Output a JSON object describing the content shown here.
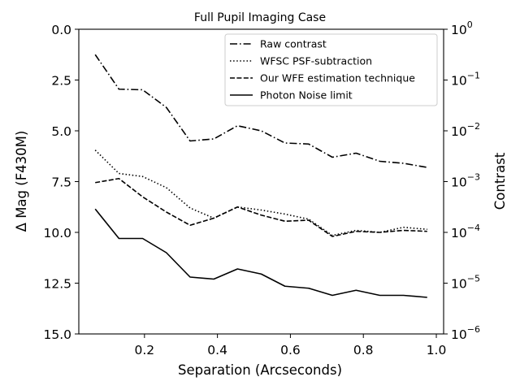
{
  "chart_data": {
    "type": "line",
    "title": "Full Pupil Imaging Case",
    "xlabel": "Separation (Arcseconds)",
    "ylabel": "Δ Mag (F430M)",
    "ylabel_right": "Contrast",
    "xlim": [
      0.02,
      1.02
    ],
    "ylim": [
      0,
      15
    ],
    "y_inverted": true,
    "x_ticks": [
      0.2,
      0.4,
      0.6,
      0.8,
      1.0
    ],
    "x_tick_labels": [
      "0.2",
      "0.4",
      "0.6",
      "0.8",
      "1.0"
    ],
    "y_ticks": [
      0,
      2.5,
      5,
      7.5,
      10,
      12.5,
      15
    ],
    "y_tick_labels": [
      "0.0",
      "2.5",
      "5.0",
      "7.5",
      "10.0",
      "12.5",
      "15.0"
    ],
    "right_ticks": [
      {
        "mag": 0,
        "base": "10",
        "exp": "0"
      },
      {
        "mag": 2.5,
        "base": "10",
        "exp": "−1"
      },
      {
        "mag": 5,
        "base": "10",
        "exp": "−2"
      },
      {
        "mag": 7.5,
        "base": "10",
        "exp": "−3"
      },
      {
        "mag": 10,
        "base": "10",
        "exp": "−4"
      },
      {
        "mag": 12.5,
        "base": "10",
        "exp": "−5"
      },
      {
        "mag": 15,
        "base": "10",
        "exp": "−6"
      }
    ],
    "legend_position": "top-right",
    "series": [
      {
        "name": "Raw contrast",
        "style": "dashdot",
        "x": [
          0.065,
          0.13,
          0.195,
          0.26,
          0.325,
          0.39,
          0.455,
          0.52,
          0.585,
          0.65,
          0.715,
          0.78,
          0.845,
          0.91,
          0.975
        ],
        "y": [
          1.25,
          2.95,
          2.98,
          3.85,
          5.5,
          5.4,
          4.75,
          5.0,
          5.6,
          5.65,
          6.3,
          6.1,
          6.5,
          6.6,
          6.8
        ]
      },
      {
        "name": "WFSC PSF-subtraction",
        "style": "dotted",
        "x": [
          0.065,
          0.13,
          0.195,
          0.26,
          0.325,
          0.39,
          0.455,
          0.52,
          0.585,
          0.65,
          0.715,
          0.78,
          0.845,
          0.91,
          0.975
        ],
        "y": [
          5.95,
          7.1,
          7.25,
          7.8,
          8.8,
          9.3,
          8.75,
          8.9,
          9.1,
          9.35,
          10.15,
          9.9,
          10.0,
          9.75,
          9.85
        ]
      },
      {
        "name": "Our WFE estimation technique",
        "style": "dashed",
        "x": [
          0.065,
          0.13,
          0.195,
          0.26,
          0.325,
          0.39,
          0.455,
          0.52,
          0.585,
          0.65,
          0.715,
          0.78,
          0.845,
          0.91,
          0.975
        ],
        "y": [
          7.55,
          7.35,
          8.25,
          9.0,
          9.65,
          9.3,
          8.75,
          9.15,
          9.45,
          9.4,
          10.2,
          9.95,
          10.0,
          9.9,
          9.95
        ]
      },
      {
        "name": "Photon Noise limit",
        "style": "solid",
        "x": [
          0.065,
          0.13,
          0.195,
          0.26,
          0.325,
          0.39,
          0.455,
          0.52,
          0.585,
          0.65,
          0.715,
          0.78,
          0.845,
          0.91,
          0.975
        ],
        "y": [
          8.85,
          10.3,
          10.3,
          11.0,
          12.2,
          12.3,
          11.8,
          12.05,
          12.65,
          12.75,
          13.1,
          12.85,
          13.1,
          13.1,
          13.2
        ]
      }
    ]
  }
}
